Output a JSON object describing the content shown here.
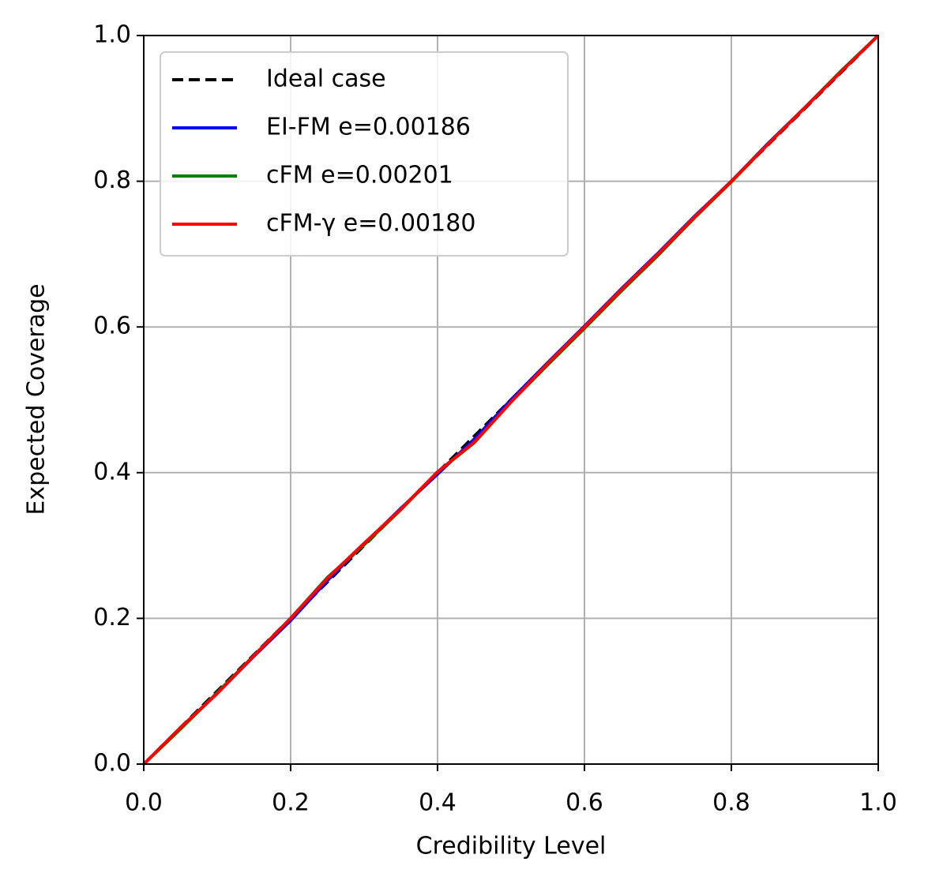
{
  "chart_data": {
    "type": "line",
    "xlabel": "Credibility Level",
    "ylabel": "Expected Coverage",
    "x": [
      0,
      0.05,
      0.1,
      0.15,
      0.2,
      0.25,
      0.3,
      0.35,
      0.4,
      0.45,
      0.5,
      0.55,
      0.6,
      0.65,
      0.7,
      0.75,
      0.8,
      0.85,
      0.9,
      0.95,
      1
    ],
    "series": [
      {
        "name": "Ideal case",
        "color": "#000000",
        "linestyle": "dashed",
        "values": [
          0,
          0.05,
          0.1,
          0.15,
          0.2,
          0.25,
          0.3,
          0.35,
          0.4,
          0.45,
          0.5,
          0.55,
          0.6,
          0.65,
          0.7,
          0.75,
          0.8,
          0.85,
          0.9,
          0.95,
          1
        ]
      },
      {
        "name": "EI-FM e=0.00186",
        "color": "#0000ff",
        "linestyle": "solid",
        "values": [
          0,
          0.049,
          0.097,
          0.148,
          0.197,
          0.252,
          0.302,
          0.351,
          0.398,
          0.446,
          0.5,
          0.551,
          0.601,
          0.652,
          0.701,
          0.752,
          0.8,
          0.852,
          0.901,
          0.951,
          1
        ]
      },
      {
        "name": "cFM e=0.00201",
        "color": "#008000",
        "linestyle": "solid",
        "values": [
          0,
          0.048,
          0.098,
          0.149,
          0.2,
          0.256,
          0.301,
          0.349,
          0.401,
          0.441,
          0.497,
          0.548,
          0.598,
          0.649,
          0.698,
          0.75,
          0.799,
          0.851,
          0.901,
          0.952,
          1
        ]
      },
      {
        "name": "cFM-γ e=0.00180",
        "color": "#ff0000",
        "linestyle": "solid",
        "values": [
          0,
          0.05,
          0.097,
          0.149,
          0.2,
          0.255,
          0.303,
          0.35,
          0.401,
          0.442,
          0.497,
          0.55,
          0.6,
          0.651,
          0.7,
          0.751,
          0.8,
          0.851,
          0.901,
          0.951,
          1
        ]
      }
    ],
    "xlim": [
      0,
      1
    ],
    "ylim": [
      0,
      1
    ],
    "xticks": [
      {
        "value": 0,
        "label": "0.0"
      },
      0.2,
      0.4,
      0.6,
      0.8,
      {
        "value": 1,
        "label": "1.0"
      }
    ],
    "yticks": [
      {
        "value": 0,
        "label": "0.0"
      },
      0.2,
      0.4,
      0.6,
      0.8,
      {
        "value": 1,
        "label": "1.0"
      }
    ],
    "grid": true,
    "legend": "upper left"
  }
}
